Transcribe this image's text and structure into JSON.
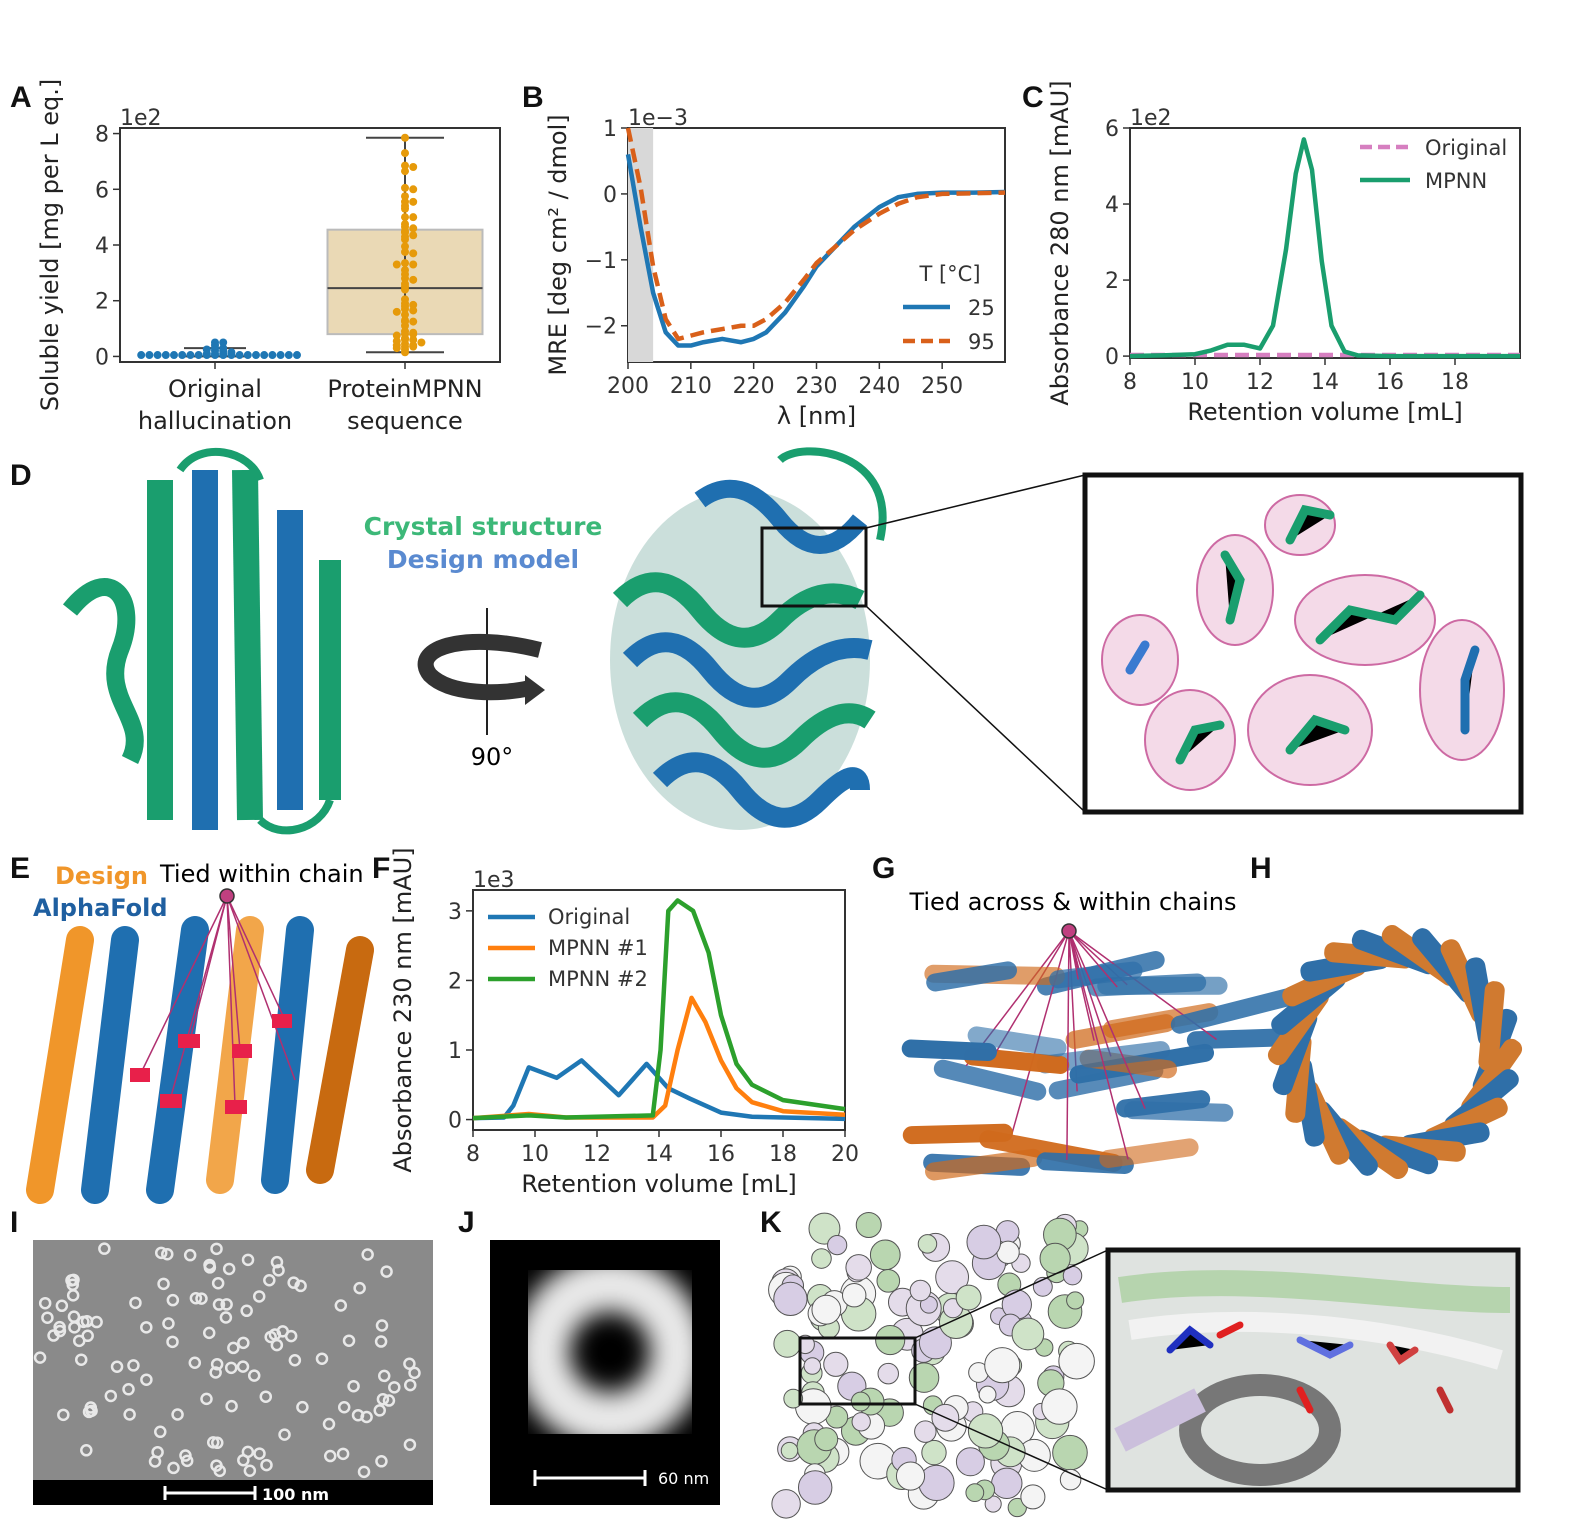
{
  "panels": {
    "A": "A",
    "B": "B",
    "C": "C",
    "D": "D",
    "E": "E",
    "F": "F",
    "G": "G",
    "H": "H",
    "I": "I",
    "J": "J",
    "K": "K"
  },
  "chart_data": [
    {
      "id": "A",
      "type": "box-swarm",
      "ylabel": "Soluble yield [mg per L eq.]",
      "y_multiplier": "1e2",
      "ylim": [
        -0.2,
        8.2
      ],
      "yticks": [
        0,
        2,
        4,
        6,
        8
      ],
      "categories": [
        "Original\nhallucination",
        "ProteinMPNN\nsequence"
      ],
      "category_lines": [
        [
          "Original",
          "hallucination"
        ],
        [
          "ProteinMPNN",
          "sequence"
        ]
      ],
      "colors": [
        "#1f77b4",
        "#e69a0a"
      ],
      "box_color": "#ead9b5",
      "boxes": [
        {
          "whislo": 0.0,
          "q1": 0.05,
          "med": 0.1,
          "q3": 0.2,
          "whishi": 0.3
        },
        {
          "whislo": 0.15,
          "q1": 0.8,
          "med": 2.45,
          "q3": 4.55,
          "whishi": 7.85
        }
      ],
      "points": [
        [
          0.05,
          0.05,
          0.05,
          0.05,
          0.05,
          0.05,
          0.05,
          0.05,
          0.05,
          0.05,
          0.05,
          0.05,
          0.05,
          0.05,
          0.05,
          0.05,
          0.05,
          0.05,
          0.05,
          0.05,
          0.1,
          0.1,
          0.1,
          0.15,
          0.2,
          0.2,
          0.25,
          0.3,
          0.3,
          0.4,
          0.5,
          0.5
        ],
        [
          7.85,
          7.3,
          6.85,
          6.8,
          6.65,
          6.05,
          6.0,
          5.75,
          5.55,
          5.55,
          5.4,
          5.3,
          5.0,
          5.0,
          4.75,
          4.65,
          4.6,
          4.5,
          4.45,
          4.35,
          4.3,
          4.2,
          3.95,
          3.75,
          3.7,
          3.35,
          3.3,
          3.3,
          3.1,
          2.95,
          2.8,
          2.75,
          2.6,
          2.5,
          2.4,
          2.05,
          1.9,
          1.85,
          1.8,
          1.7,
          1.65,
          1.6,
          1.5,
          1.3,
          1.25,
          1.25,
          1.1,
          0.9,
          0.85,
          0.8,
          0.8,
          0.75,
          0.65,
          0.6,
          0.6,
          0.55,
          0.5,
          0.45,
          0.4,
          0.4,
          0.35,
          0.35,
          0.3,
          0.25,
          0.15
        ]
      ]
    },
    {
      "id": "B",
      "type": "line",
      "xlabel": "λ [nm]",
      "ylabel": "MRE [deg cm² / dmol]",
      "y_multiplier": "1e−3",
      "xlim": [
        200,
        260
      ],
      "ylim": [
        -2.55,
        1.0
      ],
      "xticks": [
        200,
        210,
        220,
        230,
        240,
        250
      ],
      "yticks": [
        1,
        0,
        -1,
        -2
      ],
      "ytick_labels": [
        "1",
        "0",
        "−1",
        "−2"
      ],
      "shaded_region": [
        200,
        204
      ],
      "legend_title": "T [°C]",
      "legend": "right",
      "series": [
        {
          "name": "25",
          "color": "#1f77b4",
          "dash": "solid",
          "x": [
            200,
            202,
            204,
            206,
            208,
            210,
            212,
            215,
            218,
            220,
            222,
            225,
            228,
            230,
            233,
            236,
            240,
            243,
            246,
            250,
            255,
            260
          ],
          "y": [
            0.6,
            -0.5,
            -1.5,
            -2.1,
            -2.3,
            -2.3,
            -2.25,
            -2.2,
            -2.25,
            -2.2,
            -2.1,
            -1.8,
            -1.4,
            -1.1,
            -0.8,
            -0.5,
            -0.2,
            -0.05,
            0.0,
            0.02,
            0.02,
            0.03
          ]
        },
        {
          "name": "95",
          "color": "#d9601a",
          "dash": "dashed",
          "x": [
            200,
            202,
            204,
            206,
            208,
            210,
            212,
            215,
            218,
            220,
            222,
            225,
            228,
            230,
            233,
            236,
            240,
            243,
            246,
            250,
            255,
            260
          ],
          "y": [
            1.0,
            0.1,
            -1.1,
            -1.9,
            -2.2,
            -2.15,
            -2.1,
            -2.05,
            -2.0,
            -2.0,
            -1.9,
            -1.65,
            -1.3,
            -1.05,
            -0.8,
            -0.55,
            -0.3,
            -0.15,
            -0.05,
            0.0,
            0.01,
            0.02
          ]
        }
      ]
    },
    {
      "id": "C",
      "type": "line",
      "xlabel": "Retention volume [mL]",
      "ylabel": "Absorbance 280 nm [mAU]",
      "y_multiplier": "1e2",
      "xlim": [
        8,
        20
      ],
      "ylim": [
        -0.05,
        6.0
      ],
      "xticks": [
        8,
        10,
        12,
        14,
        16,
        18
      ],
      "yticks": [
        0,
        2,
        4,
        6
      ],
      "legend": "top-right",
      "series": [
        {
          "name": "Original",
          "color": "#d67fc0",
          "dash": "dashed",
          "x": [
            8,
            10,
            12,
            14,
            16,
            18,
            20
          ],
          "y": [
            0.03,
            0.03,
            0.03,
            0.03,
            0.03,
            0.03,
            0.03
          ]
        },
        {
          "name": "MPNN",
          "color": "#1a9e6e",
          "dash": "solid",
          "x": [
            8,
            9,
            10,
            10.5,
            11,
            11.5,
            12,
            12.4,
            12.8,
            13.1,
            13.35,
            13.6,
            13.9,
            14.2,
            14.6,
            15,
            16,
            20
          ],
          "y": [
            0,
            0.02,
            0.05,
            0.15,
            0.3,
            0.3,
            0.2,
            0.8,
            2.8,
            4.8,
            5.7,
            4.9,
            2.5,
            0.8,
            0.12,
            0.02,
            0,
            0
          ]
        }
      ]
    },
    {
      "id": "F",
      "type": "line",
      "xlabel": "Retention volume [mL]",
      "ylabel": "Absorbance 230 nm [mAU]",
      "y_multiplier": "1e3",
      "xlim": [
        8,
        20
      ],
      "ylim": [
        -0.15,
        3.3
      ],
      "xticks": [
        8,
        10,
        12,
        14,
        16,
        18,
        20
      ],
      "yticks": [
        0,
        1,
        2,
        3
      ],
      "legend": "top-left",
      "series": [
        {
          "name": "Original",
          "color": "#1f77b4",
          "dash": "solid",
          "x": [
            8,
            9,
            9.3,
            9.8,
            10.7,
            11.5,
            12.7,
            13.6,
            14.3,
            15,
            16,
            17,
            20
          ],
          "y": [
            0.02,
            0.03,
            0.2,
            0.75,
            0.6,
            0.85,
            0.35,
            0.8,
            0.45,
            0.3,
            0.1,
            0.04,
            0.01
          ]
        },
        {
          "name": "MPNN #1",
          "color": "#ff7f0e",
          "dash": "solid",
          "x": [
            8,
            9.8,
            11,
            13.8,
            14.2,
            14.6,
            15.05,
            15.5,
            16,
            16.5,
            17,
            18,
            20
          ],
          "y": [
            0.02,
            0.08,
            0.03,
            0.03,
            0.2,
            1.0,
            1.75,
            1.4,
            0.85,
            0.45,
            0.25,
            0.12,
            0.07
          ]
        },
        {
          "name": "MPNN #2",
          "color": "#2ca02c",
          "dash": "solid",
          "x": [
            8,
            9.8,
            11,
            13.8,
            14.05,
            14.3,
            14.6,
            15.1,
            15.6,
            16,
            16.5,
            17,
            18,
            20
          ],
          "y": [
            0.02,
            0.06,
            0.03,
            0.06,
            1.0,
            3.0,
            3.15,
            3.0,
            2.4,
            1.5,
            0.8,
            0.5,
            0.28,
            0.15
          ]
        }
      ]
    }
  ],
  "panel_D": {
    "crystal_label": "Crystal structure",
    "design_label": "Design model",
    "rotation_label": "90°",
    "crystal_color": "#1a9e6e",
    "design_color": "#4a7fc1"
  },
  "panel_E": {
    "design_label": "Design",
    "alphafold_label": "AlphaFold",
    "tie_label": "Tied within chain",
    "design_color": "#f0962a",
    "alphafold_color": "#1f5fa0"
  },
  "panel_G": {
    "tie_label": "Tied across & within chains"
  },
  "panel_I": {
    "scale_label": "100 nm"
  },
  "panel_J": {
    "scale_label": "60 nm"
  }
}
